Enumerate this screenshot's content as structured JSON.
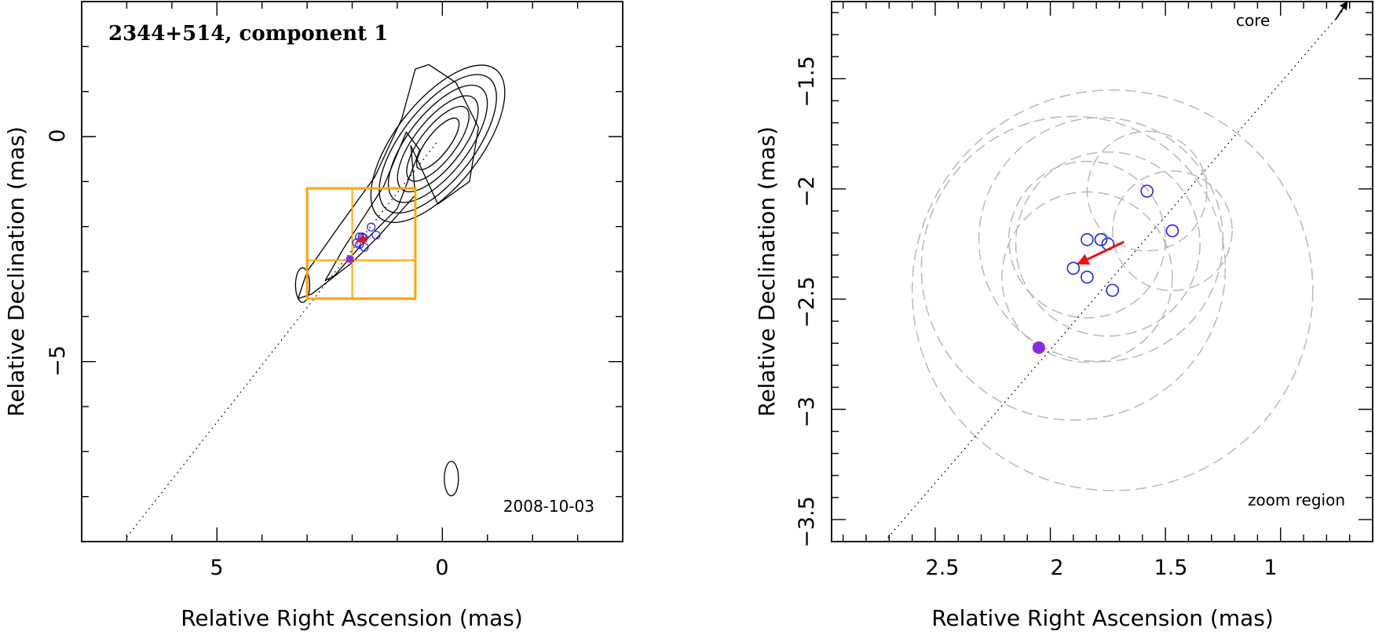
{
  "chart_data": [
    {
      "type": "contour",
      "title": "2344+514, component 1",
      "date_label": "2008-10-03",
      "xlabel": "Relative Right Ascension (mas)",
      "ylabel": "Relative Declination (mas)",
      "xlim": [
        8,
        -4
      ],
      "ylim": [
        -9,
        3
      ],
      "xtick_labels": [
        "5",
        "0"
      ],
      "xtick_values": [
        5,
        0
      ],
      "ytick_labels": [
        "0",
        "−5"
      ],
      "ytick_values": [
        0,
        -5
      ],
      "jet_axis": {
        "from": [
          7,
          -8.9
        ],
        "to": [
          0.1,
          -0.1
        ]
      },
      "zoom_box": {
        "ra_range": [
          0.6,
          3.0
        ],
        "dec_range": [
          -1.15,
          -3.6
        ],
        "cross_ra": 2.0,
        "cross_dec": -2.75
      },
      "core_model_fit": {
        "ra": 2.05,
        "dec": -2.72
      },
      "component_positions": [
        {
          "ra": 1.58,
          "dec": -2.01
        },
        {
          "ra": 1.84,
          "dec": -2.23
        },
        {
          "ra": 1.78,
          "dec": -2.23
        },
        {
          "ra": 1.75,
          "dec": -2.25
        },
        {
          "ra": 1.47,
          "dec": -2.19
        },
        {
          "ra": 1.9,
          "dec": -2.36
        },
        {
          "ra": 1.84,
          "dec": -2.4
        },
        {
          "ra": 1.73,
          "dec": -2.46
        }
      ],
      "motion_arrow": {
        "from": [
          1.68,
          -2.24
        ],
        "to": [
          1.88,
          -2.34
        ]
      },
      "colors": {
        "zoom_box": "#ffa500",
        "components": "#2222ee",
        "arrow": "#ee1111",
        "core_fit": "#8a2be2",
        "contours": "#000000"
      }
    },
    {
      "type": "scatter",
      "title": "",
      "core_label": "core",
      "zoom_label": "zoom region",
      "xlabel": "Relative Right Ascension (mas)",
      "ylabel": "Relative Declination (mas)",
      "xlim": [
        2.95,
        0.6
      ],
      "ylim": [
        -3.6,
        -1.15
      ],
      "xtick_labels": [
        "2.5",
        "2",
        "1.5",
        "1"
      ],
      "xtick_values": [
        2.5,
        2.0,
        1.5,
        1.0
      ],
      "ytick_labels": [
        "−1.5",
        "−2",
        "−2.5",
        "−3",
        "−3.5"
      ],
      "ytick_values": [
        -1.5,
        -2.0,
        -2.5,
        -3.0,
        -3.5
      ],
      "jet_axis": {
        "from": [
          2.72,
          -3.6
        ],
        "to": [
          0.72,
          -1.18
        ]
      },
      "core_arrow": {
        "from": [
          0.76,
          -1.23
        ],
        "to": [
          0.71,
          -1.15
        ]
      },
      "core_model_fit": {
        "ra": 2.05,
        "dec": -2.72
      },
      "component_positions": [
        {
          "ra": 1.58,
          "dec": -2.01
        },
        {
          "ra": 1.84,
          "dec": -2.23
        },
        {
          "ra": 1.78,
          "dec": -2.23
        },
        {
          "ra": 1.75,
          "dec": -2.25
        },
        {
          "ra": 1.47,
          "dec": -2.19
        },
        {
          "ra": 1.9,
          "dec": -2.36
        },
        {
          "ra": 1.84,
          "dec": -2.4
        },
        {
          "ra": 1.73,
          "dec": -2.46
        }
      ],
      "motion_arrow": {
        "from": [
          1.68,
          -2.24
        ],
        "to": [
          1.88,
          -2.34
        ]
      },
      "uncertainty_circles": [
        {
          "ra": 1.58,
          "dec": -2.01,
          "r": 0.26
        },
        {
          "ra": 1.84,
          "dec": -2.23,
          "r": 0.34
        },
        {
          "ra": 1.78,
          "dec": -2.23,
          "r": 0.53
        },
        {
          "ra": 1.75,
          "dec": -2.25,
          "r": 0.4
        },
        {
          "ra": 1.47,
          "dec": -2.19,
          "r": 0.26
        },
        {
          "ra": 1.9,
          "dec": -2.36,
          "r": 0.66
        },
        {
          "ra": 1.84,
          "dec": -2.4,
          "r": 0.37
        },
        {
          "ra": 1.73,
          "dec": -2.46,
          "r": 0.87
        }
      ],
      "colors": {
        "components": "#2222ee",
        "arrow": "#ee1111",
        "core_fit": "#8a2be2",
        "circles": "#b8b8b8"
      }
    }
  ]
}
